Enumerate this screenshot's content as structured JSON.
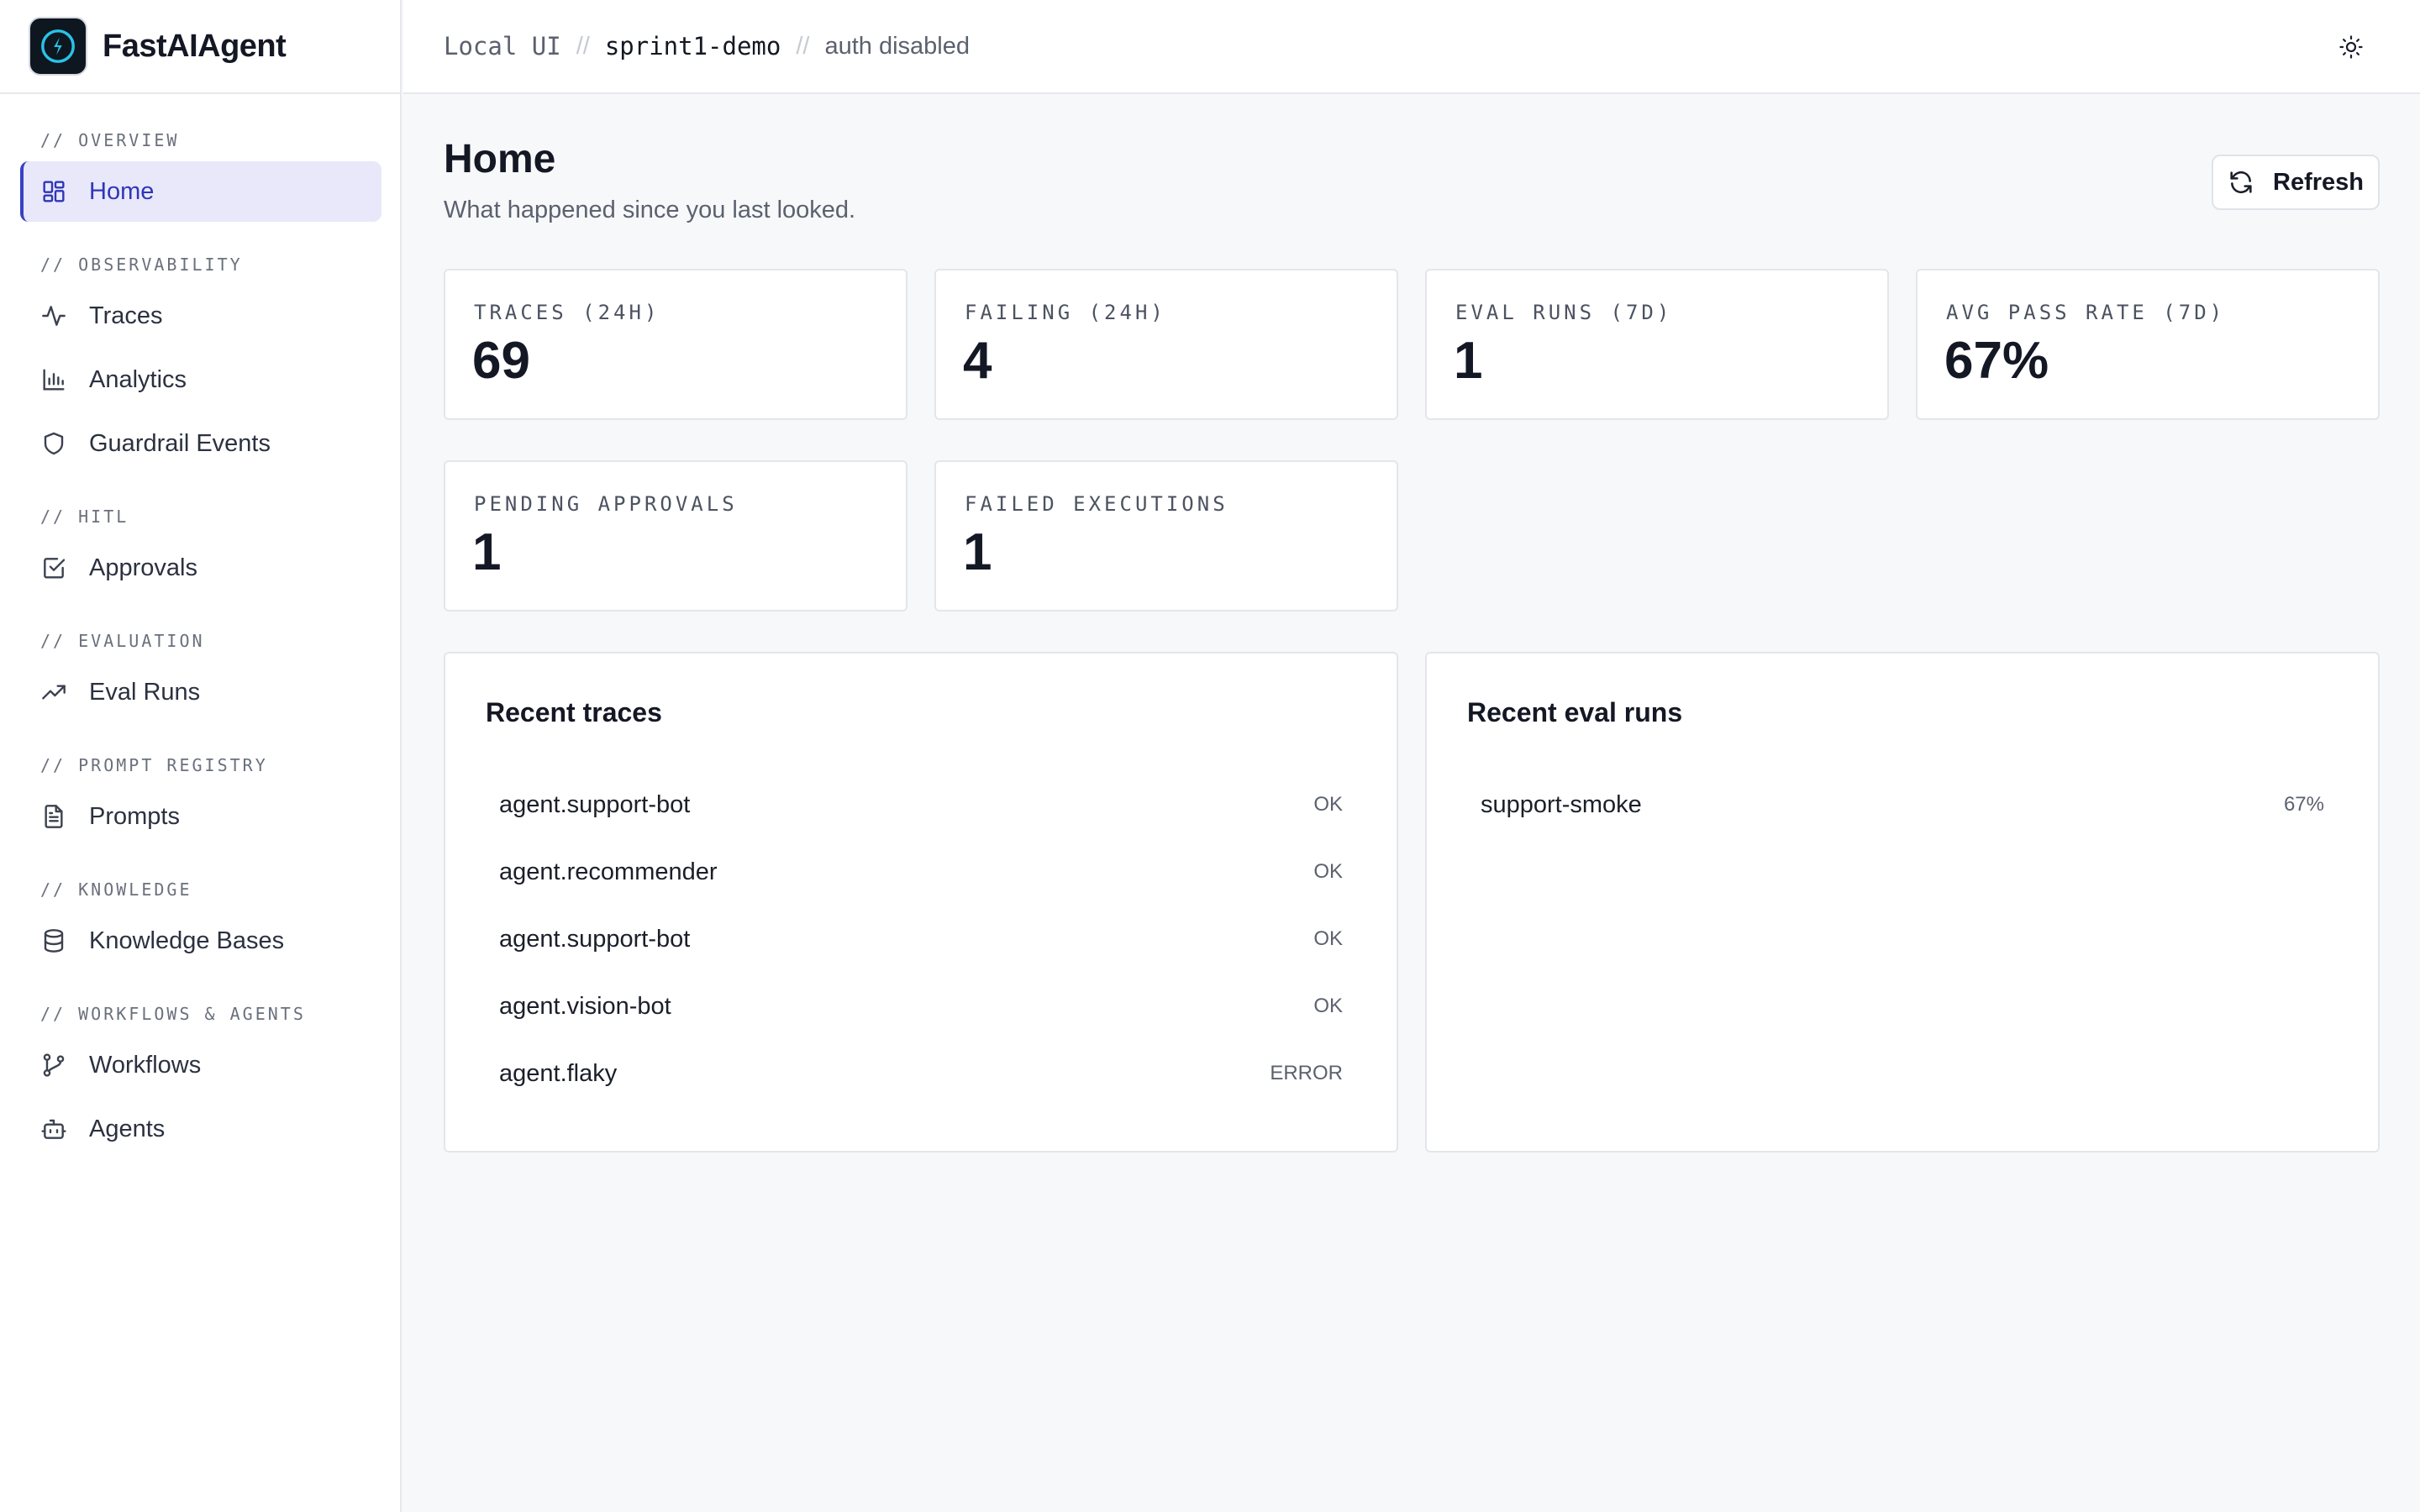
{
  "app": {
    "name": "FastAIAgent"
  },
  "breadcrumb": {
    "env": "Local UI",
    "project": "sprint1-demo",
    "auth": "auth disabled"
  },
  "sidebar": {
    "sections": [
      {
        "label": "// OVERVIEW",
        "items": [
          {
            "label": "Home",
            "icon": "dashboard-icon",
            "active": true
          }
        ]
      },
      {
        "label": "// OBSERVABILITY",
        "items": [
          {
            "label": "Traces",
            "icon": "activity-icon"
          },
          {
            "label": "Analytics",
            "icon": "bar-chart-icon"
          },
          {
            "label": "Guardrail Events",
            "icon": "shield-icon"
          }
        ]
      },
      {
        "label": "// HITL",
        "items": [
          {
            "label": "Approvals",
            "icon": "checkbox-icon"
          }
        ]
      },
      {
        "label": "// EVALUATION",
        "items": [
          {
            "label": "Eval Runs",
            "icon": "trending-up-icon"
          }
        ]
      },
      {
        "label": "// PROMPT REGISTRY",
        "items": [
          {
            "label": "Prompts",
            "icon": "file-text-icon"
          }
        ]
      },
      {
        "label": "// KNOWLEDGE",
        "items": [
          {
            "label": "Knowledge Bases",
            "icon": "database-icon"
          }
        ]
      },
      {
        "label": "// WORKFLOWS & AGENTS",
        "items": [
          {
            "label": "Workflows",
            "icon": "git-branch-icon"
          },
          {
            "label": "Agents",
            "icon": "bot-icon"
          }
        ]
      }
    ]
  },
  "page": {
    "title": "Home",
    "subtitle": "What happened since you last looked.",
    "refresh_label": "Refresh"
  },
  "stats": [
    {
      "label": "TRACES (24H)",
      "value": "69"
    },
    {
      "label": "FAILING (24H)",
      "value": "4"
    },
    {
      "label": "EVAL RUNS (7D)",
      "value": "1"
    },
    {
      "label": "AVG PASS RATE (7D)",
      "value": "67%"
    },
    {
      "label": "PENDING APPROVALS",
      "value": "1"
    },
    {
      "label": "FAILED EXECUTIONS",
      "value": "1"
    }
  ],
  "recent_traces": {
    "title": "Recent traces",
    "rows": [
      {
        "name": "agent.support-bot",
        "status": "OK"
      },
      {
        "name": "agent.recommender",
        "status": "OK"
      },
      {
        "name": "agent.support-bot",
        "status": "OK"
      },
      {
        "name": "agent.vision-bot",
        "status": "OK"
      },
      {
        "name": "agent.flaky",
        "status": "ERROR"
      }
    ]
  },
  "recent_evals": {
    "title": "Recent eval runs",
    "rows": [
      {
        "name": "support-smoke",
        "status": "67%"
      }
    ]
  },
  "colors": {
    "accent": "#3a40c4",
    "active_bg": "#e8e8fa",
    "logo_bolt": "#29c3e6"
  }
}
